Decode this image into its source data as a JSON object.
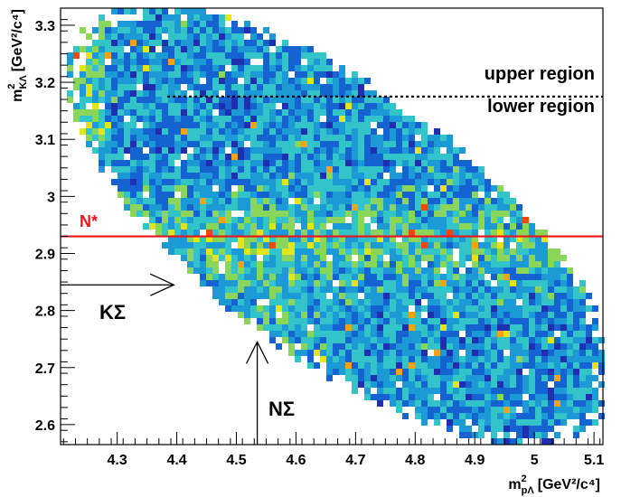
{
  "chart_data": {
    "type": "heatmap",
    "title": "",
    "xlabel": {
      "base": "m",
      "sup": "2",
      "sub": "pΛ",
      "units": "[GeV²/c⁴]"
    },
    "ylabel": {
      "base": "m",
      "sup": "2",
      "sub": "KΛ",
      "units": "[GeV²/c⁴]"
    },
    "xlim": [
      4.205,
      5.115
    ],
    "ylim": [
      2.565,
      3.33
    ],
    "x_ticks": [
      "4.3",
      "4.4",
      "4.5",
      "4.6",
      "4.7",
      "4.8",
      "4.9",
      "5",
      "5.1"
    ],
    "x_tick_values": [
      4.3,
      4.4,
      4.5,
      4.6,
      4.7,
      4.8,
      4.9,
      5.0,
      5.1
    ],
    "y_ticks": [
      "2.6",
      "2.7",
      "2.8",
      "2.9",
      "3",
      "3.1",
      "3.2",
      "3.3"
    ],
    "y_tick_values": [
      2.6,
      2.7,
      2.8,
      2.9,
      3.0,
      3.1,
      3.2,
      3.3
    ],
    "grid": false,
    "region": {
      "x_min": 4.225,
      "x_max": 5.105,
      "y_min": 2.59,
      "y_max": 3.26
    },
    "color_scale": [
      "#1f2fb0",
      "#1563d1",
      "#1c9ad6",
      "#33c4c9",
      "#8ad65a",
      "#e2e41c",
      "#f5a313",
      "#e84b12",
      "#c4101a"
    ],
    "lines": [
      {
        "label": "upper region",
        "label2": "lower region",
        "y": 3.175,
        "style": "dotted",
        "color": "#000000"
      },
      {
        "label": "N*",
        "y": 2.93,
        "style": "solid",
        "color": "#e8151b"
      }
    ],
    "arrows": [
      {
        "label": "KΣ",
        "direction": "right",
        "x_tip": 4.395,
        "y": 2.845
      },
      {
        "label": "NΣ",
        "direction": "up",
        "x": 4.535,
        "y_tip": 2.745
      }
    ]
  }
}
